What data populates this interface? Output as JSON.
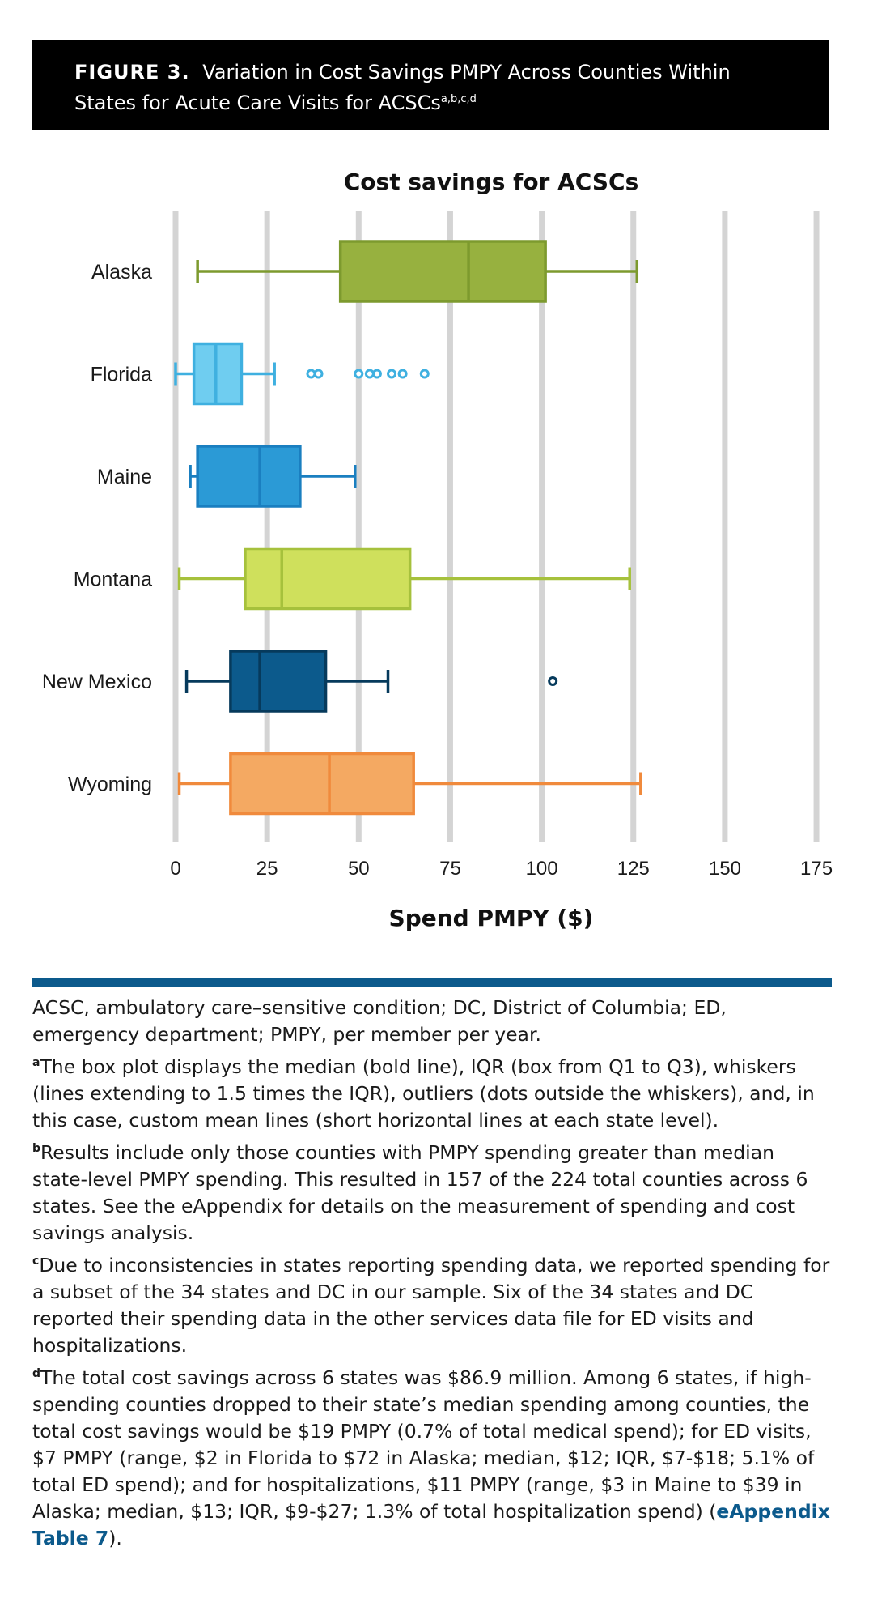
{
  "figure": {
    "label": "FIGURE 3.",
    "title_line1": "Variation in Cost Savings PMPY Across Counties Within",
    "title_line2": "States for Acute Care Visits for ACSCs",
    "title_sup": "a,b,c,d"
  },
  "chart_data": {
    "type": "boxplot",
    "title": "Cost savings for ACSCs",
    "xlabel": "Spend PMPY ($)",
    "ylabel": "",
    "xlim": [
      0,
      175
    ],
    "xticks": [
      0,
      25,
      50,
      75,
      100,
      125,
      150,
      175
    ],
    "grid": true,
    "series": [
      {
        "name": "Alaska",
        "min": 6,
        "q1": 45,
        "median": 80,
        "q3": 101,
        "max": 126,
        "outliers": [],
        "color": "#7d9a2e",
        "fill": "#97b13f"
      },
      {
        "name": "Florida",
        "min": 0,
        "q1": 5,
        "median": 11,
        "q3": 18,
        "max": 27,
        "outliers": [
          37,
          39,
          50,
          53,
          55,
          59,
          62,
          68
        ],
        "color": "#3fb0e0",
        "fill": "#6fcdf0"
      },
      {
        "name": "Maine",
        "min": 4,
        "q1": 6,
        "median": 23,
        "q3": 34,
        "max": 49,
        "outliers": [],
        "color": "#1a7fc0",
        "fill": "#2b9ad6"
      },
      {
        "name": "Montana",
        "min": 1,
        "q1": 19,
        "median": 29,
        "q3": 64,
        "max": 124,
        "outliers": [],
        "color": "#a6c13c",
        "fill": "#cfe05c"
      },
      {
        "name": "New Mexico",
        "min": 3,
        "q1": 15,
        "median": 23,
        "q3": 41,
        "max": 58,
        "outliers": [
          103
        ],
        "color": "#063a5c",
        "fill": "#0c5a8c"
      },
      {
        "name": "Wyoming",
        "min": 1,
        "q1": 15,
        "median": 42,
        "q3": 65,
        "max": 127,
        "outliers": [],
        "color": "#f08a3c",
        "fill": "#f4a962"
      }
    ]
  },
  "notes": {
    "abbrev": "ACSC, ambulatory care–sensitive condition; DC, District of Columbia; ED, emergency department; PMPY, per member per year.",
    "a_mark": "a",
    "a": "The box plot displays the median (bold line), IQR (box from Q1 to Q3), whiskers (lines extending to 1.5 times the IQR), outliers (dots outside the whiskers), and, in this case, custom mean lines (short horizontal lines at each state level).",
    "b_mark": "b",
    "b": "Results include only those counties with PMPY spending greater than median state-level PMPY spending. This resulted in 157 of the 224 total counties across 6 states. See the eAppendix for details on the measurement of spending and cost savings analysis.",
    "c_mark": "c",
    "c": "Due to inconsistencies in states reporting spending data, we reported spending for a subset of the 34 states and DC in our sample. Six of the 34 states and DC reported their spending data in the other services data file for ED visits and hospitalizations.",
    "d_mark": "d",
    "d": "The total cost savings across 6 states was $86.9 million. Among 6 states, if high-spending counties dropped to their state’s median spending among counties, the total cost savings would be $19 PMPY (0.7% of total medical spend); for ED visits, $7 PMPY (range, $2 in Florida to $72 in Alaska; median, $12; IQR, $7-$18; 5.1% of total ED spend); and for hospitalizations, $11 PMPY (range, $3 in Maine to $39 in Alaska; median, $13; IQR, $9-$27; 1.3% of total hospitalization spend) (",
    "d_link": "eAppendix Table 7",
    "d_end": ")."
  }
}
